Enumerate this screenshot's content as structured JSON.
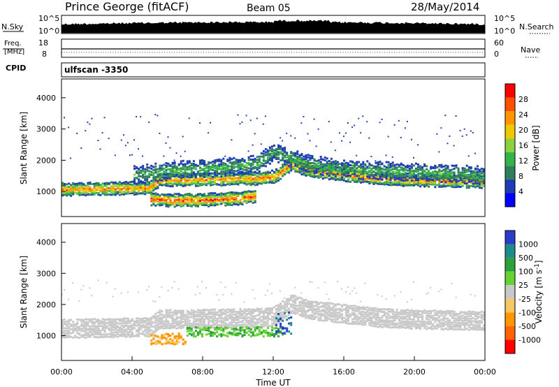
{
  "header": {
    "station": "Prince George (fitACF)",
    "beam": "Beam 05",
    "date": "28/May/2014"
  },
  "top_panels": {
    "nsky_label": "N.Sky",
    "nsky_ticks": [
      "10^5",
      "10^0"
    ],
    "nsearch_label": "N.Search",
    "nsearch_ticks": [
      "10^5",
      "10^0"
    ],
    "freq_label": "Freq.",
    "freq_unit": "[MHz]",
    "freq_ticks": [
      "18",
      "8"
    ],
    "nave_label": "Nave",
    "nave_ticks": [
      "60",
      "0"
    ],
    "cpid_label": "CPID",
    "cpid_value": "ulfscan -3350"
  },
  "chart_data": [
    {
      "type": "heatmap",
      "name": "power",
      "xlabel": "",
      "ylabel": "Slant Range [km]",
      "yticks": [
        "1000",
        "2000",
        "3000",
        "4000"
      ],
      "xlim": [
        0,
        24
      ],
      "ylim": [
        200,
        4600
      ],
      "colorbar": {
        "label": "Power [dB]",
        "ticks": [
          "4",
          "8",
          "12",
          "16",
          "20",
          "24",
          "28"
        ],
        "range": [
          0,
          32
        ],
        "colors": [
          "#0000ff",
          "#1e3cb4",
          "#2f7d5a",
          "#34b34a",
          "#8cd23c",
          "#f0c800",
          "#ff9600",
          "#ff5000",
          "#ff0000"
        ]
      },
      "bands": [
        {
          "name": "low-band",
          "x": [
            0,
            5,
            5.5,
            11,
            12,
            13,
            14,
            18,
            20,
            24
          ],
          "y": [
            1100,
            1150,
            1400,
            1450,
            1500,
            1900,
            1700,
            1450,
            1400,
            1350
          ],
          "level": 26
        },
        {
          "name": "mid-band",
          "x": [
            5,
            6,
            8,
            10,
            11
          ],
          "y": [
            800,
            750,
            760,
            820,
            900
          ],
          "level": 29
        },
        {
          "name": "upper-band",
          "x": [
            4,
            6,
            9,
            11,
            12,
            13,
            14,
            16,
            24
          ],
          "y": [
            1550,
            1700,
            1800,
            1900,
            2300,
            2100,
            1900,
            1750,
            1550
          ],
          "level": 12
        }
      ]
    },
    {
      "type": "heatmap",
      "name": "velocity",
      "xlabel": "Time UT",
      "ylabel": "Slant Range [km]",
      "xticks": [
        "00:00",
        "04:00",
        "08:00",
        "12:00",
        "16:00",
        "20:00",
        "00:00"
      ],
      "yticks": [
        "1000",
        "2000",
        "3000",
        "4000"
      ],
      "xlim": [
        0,
        24
      ],
      "ylim": [
        200,
        4600
      ],
      "colorbar": {
        "label": "Velocity [m s^-1]",
        "ticks": [
          "1000",
          "500",
          "100",
          "25",
          "-25",
          "-100",
          "-500",
          "-1000"
        ],
        "colors": [
          "#2a3cc8",
          "#1e8c8c",
          "#2da03c",
          "#64d232",
          "#c8c8c8",
          "#f5c864",
          "#ff9600",
          "#ff6400",
          "#ff0000"
        ]
      }
    }
  ]
}
